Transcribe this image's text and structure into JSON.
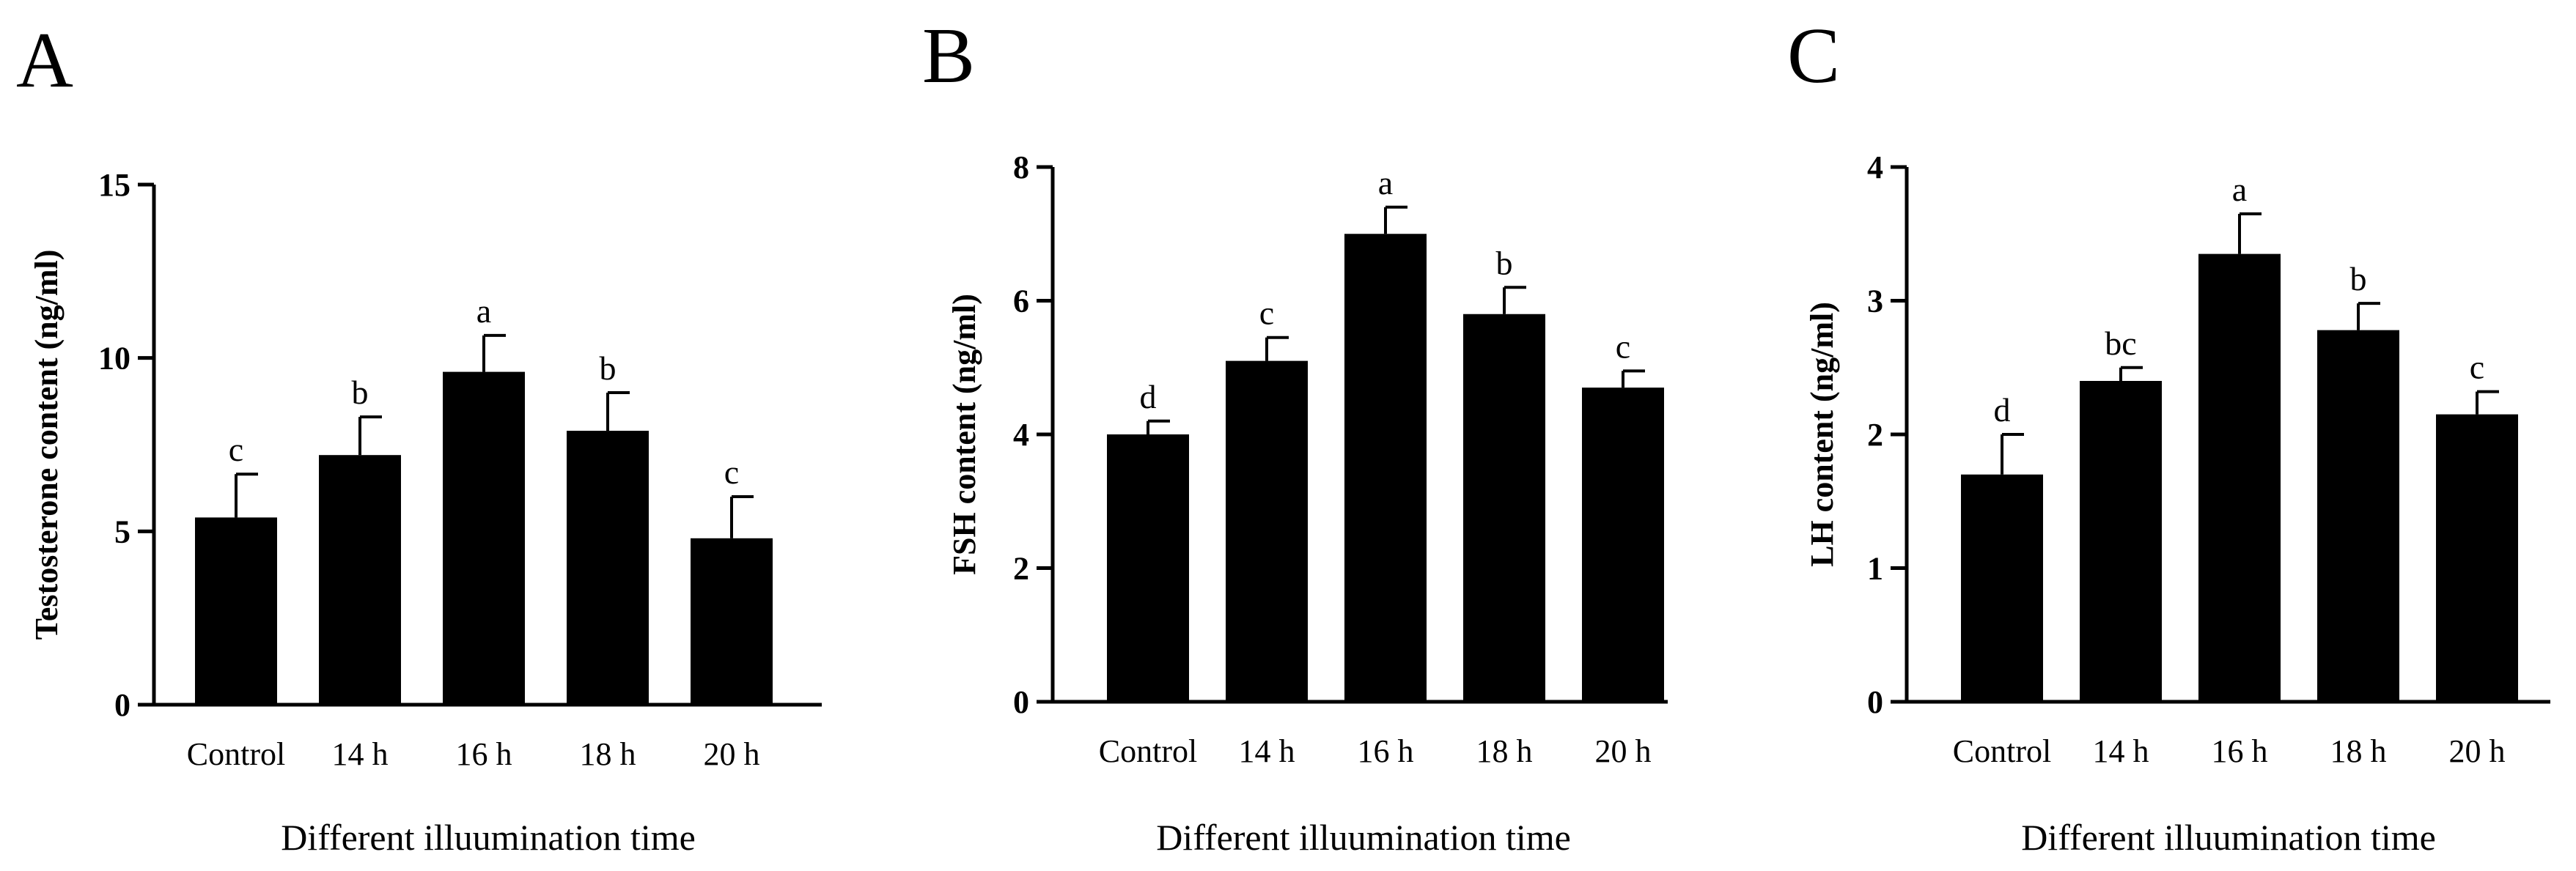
{
  "figure": {
    "xlabel": "Different illuumination time",
    "categories": [
      "Control",
      "14 h",
      "16 h",
      "18 h",
      "20 h"
    ]
  },
  "chart_data": [
    {
      "type": "bar",
      "panel": "A",
      "title": "",
      "xlabel": "Different illuumination time",
      "ylabel": "Testosterone content (ng/ml)",
      "categories": [
        "Control",
        "14 h",
        "16 h",
        "18 h",
        "20 h"
      ],
      "values": [
        5.4,
        7.2,
        9.6,
        7.9,
        4.8
      ],
      "errors": [
        1.25,
        1.1,
        1.05,
        1.1,
        1.2
      ],
      "significance": [
        "c",
        "b",
        "a",
        "b",
        "c"
      ],
      "ylim": [
        0,
        15
      ],
      "yticks": [
        "0",
        "5",
        "10",
        "15"
      ],
      "color": "#000000",
      "grid": false
    },
    {
      "type": "bar",
      "panel": "B",
      "title": "",
      "xlabel": "Different illuumination time",
      "ylabel": "FSH content (ng/ml)",
      "categories": [
        "Control",
        "14 h",
        "16 h",
        "18 h",
        "20 h"
      ],
      "values": [
        4.0,
        5.1,
        7.0,
        5.8,
        4.7
      ],
      "errors": [
        0.2,
        0.35,
        0.4,
        0.4,
        0.25
      ],
      "significance": [
        "d",
        "c",
        "a",
        "b",
        "c"
      ],
      "ylim": [
        0,
        8
      ],
      "yticks": [
        "0",
        "2",
        "4",
        "6",
        "8"
      ],
      "color": "#000000",
      "grid": false
    },
    {
      "type": "bar",
      "panel": "C",
      "title": "",
      "xlabel": "Different illuumination time",
      "ylabel": "LH content (ng/ml)",
      "categories": [
        "Control",
        "14 h",
        "16 h",
        "18 h",
        "20 h"
      ],
      "values": [
        1.7,
        2.4,
        3.35,
        2.78,
        2.15
      ],
      "errors": [
        0.3,
        0.1,
        0.3,
        0.2,
        0.17
      ],
      "significance": [
        "d",
        "bc",
        "a",
        "b",
        "c"
      ],
      "ylim": [
        0,
        4
      ],
      "yticks": [
        "0",
        "1",
        "2",
        "3",
        "4"
      ],
      "color": "#000000",
      "grid": false
    }
  ]
}
